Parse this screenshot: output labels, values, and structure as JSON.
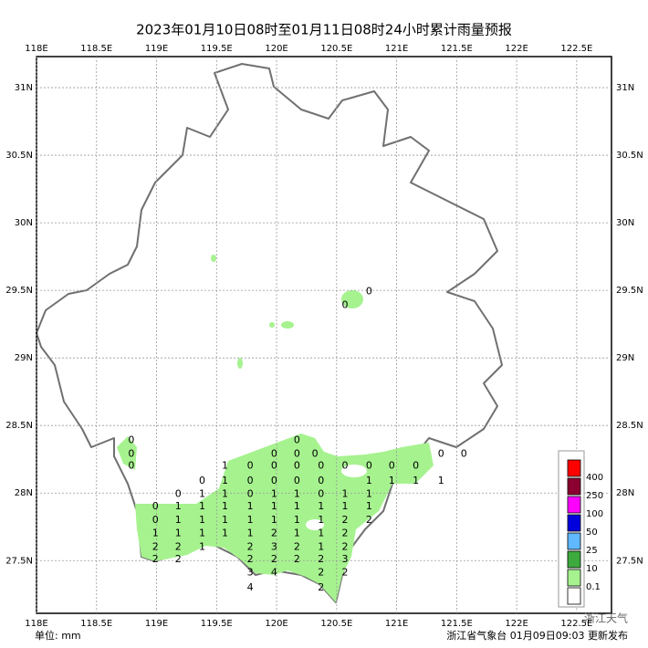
{
  "map": {
    "title": "2023年01月10日08时至01月11日08时24小时累计雨量预报",
    "lon_range": [
      118,
      122.79
    ],
    "lat_range": [
      27.11,
      31.23
    ],
    "lon_ticks": [
      {
        "value": 118,
        "label": "118E"
      },
      {
        "value": 118.5,
        "label": "118.5E"
      },
      {
        "value": 119,
        "label": "119E"
      },
      {
        "value": 119.5,
        "label": "119.5E"
      },
      {
        "value": 120,
        "label": "120E"
      },
      {
        "value": 120.5,
        "label": "120.5E"
      },
      {
        "value": 121,
        "label": "121E"
      },
      {
        "value": 121.5,
        "label": "121.5E"
      },
      {
        "value": 122,
        "label": "122E"
      },
      {
        "value": 122.5,
        "label": "122.5E"
      }
    ],
    "lat_ticks": [
      {
        "value": 31,
        "label": "31N"
      },
      {
        "value": 30.5,
        "label": "30.5N"
      },
      {
        "value": 30,
        "label": "30N"
      },
      {
        "value": 29.5,
        "label": "29.5N"
      },
      {
        "value": 29,
        "label": "29N"
      },
      {
        "value": 28.5,
        "label": "28.5N"
      },
      {
        "value": 28,
        "label": "28N"
      },
      {
        "value": 27.5,
        "label": "27.5N"
      }
    ],
    "grid": true,
    "legend": {
      "levels": [
        0.1,
        10,
        25,
        50,
        100,
        250,
        400
      ],
      "colors": [
        "#ffffff",
        "#a6f28f",
        "#3daa3d",
        "#60b8ff",
        "#0000dd",
        "#ff00ff",
        "#8b0030",
        "#ff0000"
      ]
    },
    "stations": [
      {
        "lon": 120.77,
        "lat": 29.49,
        "value": 0
      },
      {
        "lon": 120.57,
        "lat": 29.39,
        "value": 0
      },
      {
        "lon": 118.79,
        "lat": 28.39,
        "value": 0
      },
      {
        "lon": 120.17,
        "lat": 28.39,
        "value": 0
      },
      {
        "lon": 118.79,
        "lat": 28.29,
        "value": 0
      },
      {
        "lon": 119.98,
        "lat": 28.29,
        "value": 0
      },
      {
        "lon": 120.17,
        "lat": 28.29,
        "value": 0
      },
      {
        "lon": 120.32,
        "lat": 28.29,
        "value": 0
      },
      {
        "lon": 121.37,
        "lat": 28.29,
        "value": 0
      },
      {
        "lon": 121.56,
        "lat": 28.29,
        "value": 0
      },
      {
        "lon": 118.79,
        "lat": 28.2,
        "value": 0
      },
      {
        "lon": 119.57,
        "lat": 28.2,
        "value": 1
      },
      {
        "lon": 119.78,
        "lat": 28.2,
        "value": 0
      },
      {
        "lon": 119.98,
        "lat": 28.2,
        "value": 0
      },
      {
        "lon": 120.17,
        "lat": 28.2,
        "value": 0
      },
      {
        "lon": 120.37,
        "lat": 28.2,
        "value": 0
      },
      {
        "lon": 120.57,
        "lat": 28.2,
        "value": 0
      },
      {
        "lon": 120.77,
        "lat": 28.2,
        "value": 0
      },
      {
        "lon": 120.96,
        "lat": 28.2,
        "value": 0
      },
      {
        "lon": 121.16,
        "lat": 28.2,
        "value": 0
      },
      {
        "lon": 119.38,
        "lat": 28.09,
        "value": 0
      },
      {
        "lon": 119.57,
        "lat": 28.09,
        "value": 1
      },
      {
        "lon": 119.78,
        "lat": 28.09,
        "value": 0
      },
      {
        "lon": 119.98,
        "lat": 28.09,
        "value": 0
      },
      {
        "lon": 120.17,
        "lat": 28.09,
        "value": 0
      },
      {
        "lon": 120.37,
        "lat": 28.09,
        "value": 0
      },
      {
        "lon": 120.77,
        "lat": 28.09,
        "value": 1
      },
      {
        "lon": 120.96,
        "lat": 28.09,
        "value": 1
      },
      {
        "lon": 121.16,
        "lat": 28.09,
        "value": 1
      },
      {
        "lon": 121.37,
        "lat": 28.09,
        "value": 1
      },
      {
        "lon": 119.18,
        "lat": 27.99,
        "value": 0
      },
      {
        "lon": 119.38,
        "lat": 27.99,
        "value": 1
      },
      {
        "lon": 119.57,
        "lat": 27.99,
        "value": 1
      },
      {
        "lon": 119.78,
        "lat": 27.99,
        "value": 0
      },
      {
        "lon": 119.98,
        "lat": 27.99,
        "value": 1
      },
      {
        "lon": 120.17,
        "lat": 27.99,
        "value": 1
      },
      {
        "lon": 120.37,
        "lat": 27.99,
        "value": 0
      },
      {
        "lon": 120.57,
        "lat": 27.99,
        "value": 1
      },
      {
        "lon": 120.77,
        "lat": 27.99,
        "value": 1
      },
      {
        "lon": 118.99,
        "lat": 27.9,
        "value": 0
      },
      {
        "lon": 119.18,
        "lat": 27.9,
        "value": 1
      },
      {
        "lon": 119.38,
        "lat": 27.9,
        "value": 1
      },
      {
        "lon": 119.57,
        "lat": 27.9,
        "value": 1
      },
      {
        "lon": 119.78,
        "lat": 27.9,
        "value": 1
      },
      {
        "lon": 119.98,
        "lat": 27.9,
        "value": 1
      },
      {
        "lon": 120.17,
        "lat": 27.9,
        "value": 1
      },
      {
        "lon": 120.37,
        "lat": 27.9,
        "value": 1
      },
      {
        "lon": 120.57,
        "lat": 27.9,
        "value": 1
      },
      {
        "lon": 120.77,
        "lat": 27.9,
        "value": 1
      },
      {
        "lon": 118.99,
        "lat": 27.8,
        "value": 0
      },
      {
        "lon": 119.18,
        "lat": 27.8,
        "value": 1
      },
      {
        "lon": 119.38,
        "lat": 27.8,
        "value": 1
      },
      {
        "lon": 119.57,
        "lat": 27.8,
        "value": 1
      },
      {
        "lon": 119.78,
        "lat": 27.8,
        "value": 1
      },
      {
        "lon": 119.98,
        "lat": 27.8,
        "value": 1
      },
      {
        "lon": 120.17,
        "lat": 27.8,
        "value": 1
      },
      {
        "lon": 120.37,
        "lat": 27.8,
        "value": 1
      },
      {
        "lon": 120.57,
        "lat": 27.8,
        "value": 2
      },
      {
        "lon": 120.77,
        "lat": 27.8,
        "value": 2
      },
      {
        "lon": 118.99,
        "lat": 27.7,
        "value": 1
      },
      {
        "lon": 119.18,
        "lat": 27.7,
        "value": 1
      },
      {
        "lon": 119.38,
        "lat": 27.7,
        "value": 1
      },
      {
        "lon": 119.57,
        "lat": 27.7,
        "value": 1
      },
      {
        "lon": 119.78,
        "lat": 27.7,
        "value": 1
      },
      {
        "lon": 119.98,
        "lat": 27.7,
        "value": 2
      },
      {
        "lon": 120.17,
        "lat": 27.7,
        "value": 1
      },
      {
        "lon": 120.37,
        "lat": 27.7,
        "value": 1
      },
      {
        "lon": 120.57,
        "lat": 27.7,
        "value": 2
      },
      {
        "lon": 118.99,
        "lat": 27.6,
        "value": 2
      },
      {
        "lon": 119.18,
        "lat": 27.6,
        "value": 2
      },
      {
        "lon": 119.38,
        "lat": 27.6,
        "value": 1
      },
      {
        "lon": 119.78,
        "lat": 27.6,
        "value": 2
      },
      {
        "lon": 119.98,
        "lat": 27.6,
        "value": 3
      },
      {
        "lon": 120.17,
        "lat": 27.6,
        "value": 2
      },
      {
        "lon": 120.37,
        "lat": 27.6,
        "value": 1
      },
      {
        "lon": 120.57,
        "lat": 27.6,
        "value": 2
      },
      {
        "lon": 118.99,
        "lat": 27.51,
        "value": 2
      },
      {
        "lon": 119.18,
        "lat": 27.51,
        "value": 2
      },
      {
        "lon": 119.78,
        "lat": 27.51,
        "value": 2
      },
      {
        "lon": 119.98,
        "lat": 27.51,
        "value": 2
      },
      {
        "lon": 120.17,
        "lat": 27.51,
        "value": 2
      },
      {
        "lon": 120.37,
        "lat": 27.51,
        "value": 2
      },
      {
        "lon": 120.57,
        "lat": 27.51,
        "value": 3
      },
      {
        "lon": 119.78,
        "lat": 27.41,
        "value": 3
      },
      {
        "lon": 119.98,
        "lat": 27.41,
        "value": 4
      },
      {
        "lon": 120.37,
        "lat": 27.41,
        "value": 2
      },
      {
        "lon": 120.57,
        "lat": 27.41,
        "value": 2
      },
      {
        "lon": 119.78,
        "lat": 27.3,
        "value": 4
      },
      {
        "lon": 120.37,
        "lat": 27.3,
        "value": 2
      }
    ],
    "unit": "单位: mm",
    "source": "浙江省气象台 01月09日09:03 更新发布",
    "watermark": "浙江天气"
  }
}
